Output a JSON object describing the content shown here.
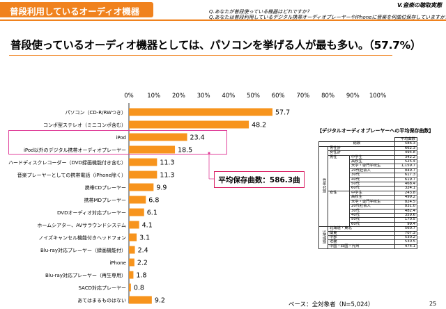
{
  "header": {
    "tab": "普段利用しているオーディオ機器",
    "section": "V.音楽の聴取実態"
  },
  "questions": {
    "q1": "Q.あなたが普段使っている機器はどれですか？",
    "q2": "Q.あなたは普段利用しているデジタル携帯オーディオプレーヤーやiPhoneに音楽を何曲位保存していますか？"
  },
  "headline": "普段使っているオーディオ機器としては、パソコンを挙げる人が最も多い。（57.7%）",
  "callout": "平均保存曲数：586.3曲",
  "footer": {
    "base": "ベース：全対象者（N=5,024）",
    "page": "25"
  },
  "colors": {
    "accent": "#f0821e",
    "bar": "#f7941d",
    "highlight": "#e0409a"
  },
  "chart_data": {
    "type": "bar",
    "orientation": "horizontal",
    "categories": [
      "パソコン（CD-R/RWつき）",
      "コンポ型ステレオ（ミニコンポ含む）",
      "iPod",
      "iPod以外のデジタル携帯オーディオプレーヤー",
      "ハードディスクレコーダー（DVD録画機能付き含む）",
      "音楽プレーヤーとしての携帯電話（iPhone除く）",
      "携帯CDプレーヤー",
      "携帯MDプレーヤー",
      "DVDオーディオ対応プレーヤー",
      "ホームシアター、AVサラウンドシステム",
      "ノイズキャンセル機能付きヘッドフォン",
      "Blu-ray対応プレーヤー（録画機能付）",
      "iPhone",
      "Blu-ray対応プレーヤー（再生専用）",
      "SACD対応プレーヤー",
      "あてはまるものはない"
    ],
    "values": [
      57.7,
      48.2,
      23.4,
      18.5,
      11.3,
      11.3,
      9.9,
      6.8,
      6.1,
      4.1,
      3.1,
      2.4,
      2.2,
      1.8,
      0.8,
      9.2
    ],
    "value_labels": [
      "57.7",
      "48.2",
      "23.4",
      "18.5",
      "11.3",
      "11.3",
      "9.9",
      "6.8",
      "6.1",
      "4.1",
      "3.1",
      "2.4",
      "2.2",
      "1.8",
      "0.8",
      "9.2"
    ],
    "xlim": [
      0,
      100
    ],
    "xticks": [
      "0%",
      "10%",
      "20%",
      "30%",
      "40%",
      "50%",
      "60%",
      "70%",
      "80%",
      "90%",
      "100%"
    ],
    "grid": false
  },
  "retention_table": {
    "title": "【デジタルオーディオプレーヤーへの平均保存曲数】",
    "col_header": "平均曲数",
    "total_label": "総数",
    "total": "586.3",
    "male_total_label": "男性計",
    "male_total": "662.3",
    "female_total_label": "女性計",
    "female_total": "494.8",
    "sexage_label": "性年代別",
    "male_label": "男性",
    "male_rows": [
      [
        "中学生",
        "342.2"
      ],
      [
        "高校生",
        "525.4"
      ],
      [
        "大学・専門学校生",
        "1,159.7"
      ],
      [
        "20代社会人",
        "849.7"
      ],
      [
        "30代",
        "617.3"
      ],
      [
        "40代",
        "619.7"
      ],
      [
        "50代",
        "468.4"
      ],
      [
        "60代",
        "324.1"
      ]
    ],
    "female_label": "女性",
    "female_rows": [
      [
        "中学生",
        "243.8"
      ],
      [
        "高校生",
        "499.2"
      ],
      [
        "大学・専門学校生",
        "824.5"
      ],
      [
        "20代社会人",
        "831.0"
      ],
      [
        "30代",
        "482.4"
      ],
      [
        "40代",
        "359.6"
      ],
      [
        "50代",
        "170.5"
      ],
      [
        "60代",
        "99.4"
      ]
    ],
    "region_label": "5地域別",
    "region_rows": [
      [
        "北海道・東北",
        "560.7"
      ],
      [
        "関東",
        "707.3"
      ],
      [
        "中部",
        "530.2"
      ],
      [
        "近畿",
        "530.5"
      ],
      [
        "中国・四国・九州",
        "474.1"
      ]
    ]
  }
}
